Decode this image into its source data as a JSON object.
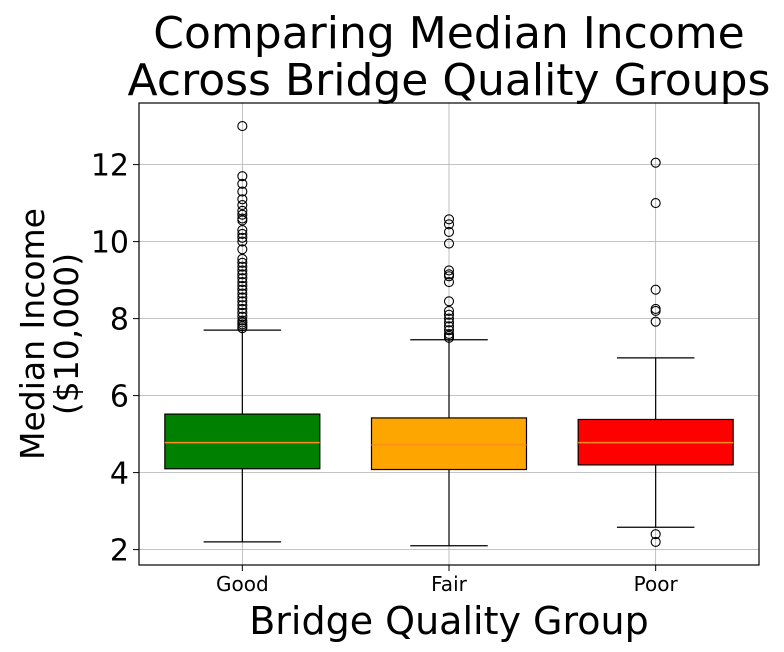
{
  "chart_data": {
    "type": "box",
    "title": [
      "Comparing Median Income",
      "Across Bridge Quality Groups"
    ],
    "xlabel": "Bridge Quality Group",
    "ylabel": [
      "Median Income",
      "($10,000)"
    ],
    "ylim": [
      1.6,
      13.6
    ],
    "yticks": [
      2,
      4,
      6,
      8,
      10,
      12
    ],
    "grid": true,
    "categories": [
      "Good",
      "Fair",
      "Poor"
    ],
    "colors": [
      "#008000",
      "#FFA500",
      "#FF0000"
    ],
    "median_color": "#FF8C1A",
    "boxes": [
      {
        "name": "Good",
        "whisker_low": 2.2,
        "q1": 4.1,
        "median": 4.78,
        "q3": 5.52,
        "whisker_high": 7.7,
        "outliers": [
          13.0,
          11.7,
          11.5,
          11.3,
          11.1,
          10.95,
          10.8,
          10.7,
          10.6,
          10.55,
          10.3,
          10.2,
          10.1,
          10.0,
          9.8,
          9.55,
          9.45,
          9.35,
          9.25,
          9.15,
          9.05,
          8.95,
          8.85,
          8.75,
          8.65,
          8.55,
          8.45,
          8.35,
          8.25,
          8.15,
          8.05,
          7.95,
          7.9,
          7.85,
          7.8,
          7.75
        ]
      },
      {
        "name": "Fair",
        "whisker_low": 2.1,
        "q1": 4.08,
        "median": 4.72,
        "q3": 5.42,
        "whisker_high": 7.45,
        "outliers": [
          10.58,
          10.45,
          10.25,
          9.95,
          9.25,
          9.15,
          9.1,
          8.95,
          8.45,
          8.2,
          8.1,
          8.0,
          7.9,
          7.8,
          7.7,
          7.6,
          7.55,
          7.5
        ]
      },
      {
        "name": "Poor",
        "whisker_low": 2.58,
        "q1": 4.2,
        "median": 4.78,
        "q3": 5.38,
        "whisker_high": 6.98,
        "outliers": [
          12.05,
          11.0,
          8.75,
          8.25,
          8.2,
          7.92,
          2.4,
          2.2
        ]
      }
    ]
  }
}
